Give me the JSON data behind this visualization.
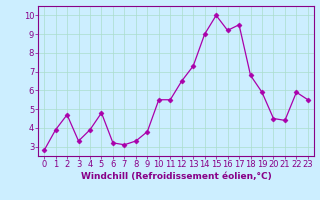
{
  "x": [
    0,
    1,
    2,
    3,
    4,
    5,
    6,
    7,
    8,
    9,
    10,
    11,
    12,
    13,
    14,
    15,
    16,
    17,
    18,
    19,
    20,
    21,
    22,
    23
  ],
  "y": [
    2.8,
    3.9,
    4.7,
    3.3,
    3.9,
    4.8,
    3.2,
    3.1,
    3.3,
    3.8,
    5.5,
    5.5,
    6.5,
    7.3,
    9.0,
    10.0,
    9.2,
    9.5,
    6.8,
    5.9,
    4.5,
    4.4,
    5.9,
    5.5
  ],
  "line_color": "#aa00aa",
  "marker": "D",
  "markersize": 2.5,
  "linewidth": 0.9,
  "xlabel": "Windchill (Refroidissement éolien,°C)",
  "xlim": [
    -0.5,
    23.5
  ],
  "ylim": [
    2.5,
    10.5
  ],
  "yticks": [
    3,
    4,
    5,
    6,
    7,
    8,
    9,
    10
  ],
  "xticks": [
    0,
    1,
    2,
    3,
    4,
    5,
    6,
    7,
    8,
    9,
    10,
    11,
    12,
    13,
    14,
    15,
    16,
    17,
    18,
    19,
    20,
    21,
    22,
    23
  ],
  "bg_color": "#cceeff",
  "grid_color": "#aaddcc",
  "grid_linewidth": 0.5,
  "xlabel_fontsize": 6.5,
  "tick_fontsize": 6.0,
  "tick_color": "#880088",
  "spine_color": "#880088"
}
